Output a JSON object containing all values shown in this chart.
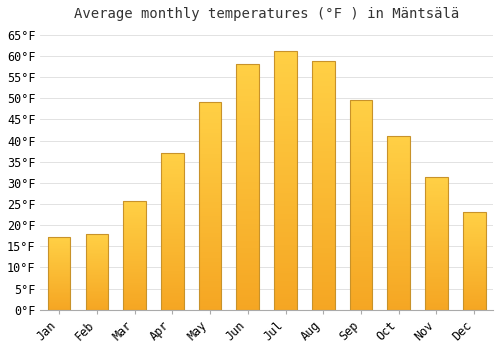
{
  "title": "Average monthly temperatures (°F ) in Mäntsälä",
  "months": [
    "Jan",
    "Feb",
    "Mar",
    "Apr",
    "May",
    "Jun",
    "Jul",
    "Aug",
    "Sep",
    "Oct",
    "Nov",
    "Dec"
  ],
  "values": [
    17.2,
    18.0,
    25.7,
    37.0,
    49.1,
    58.1,
    61.2,
    58.8,
    49.6,
    41.1,
    31.3,
    23.0
  ],
  "bar_color_bottom": "#F5A623",
  "bar_color_top": "#FFD045",
  "bar_edge_color": "#C8922A",
  "background_color": "#FFFFFF",
  "grid_color": "#DDDDDD",
  "ylim": [
    0,
    67
  ],
  "yticks": [
    0,
    5,
    10,
    15,
    20,
    25,
    30,
    35,
    40,
    45,
    50,
    55,
    60,
    65
  ],
  "tick_label_suffix": "°F",
  "title_fontsize": 10,
  "tick_fontsize": 8.5,
  "figsize": [
    5.0,
    3.5
  ],
  "dpi": 100
}
